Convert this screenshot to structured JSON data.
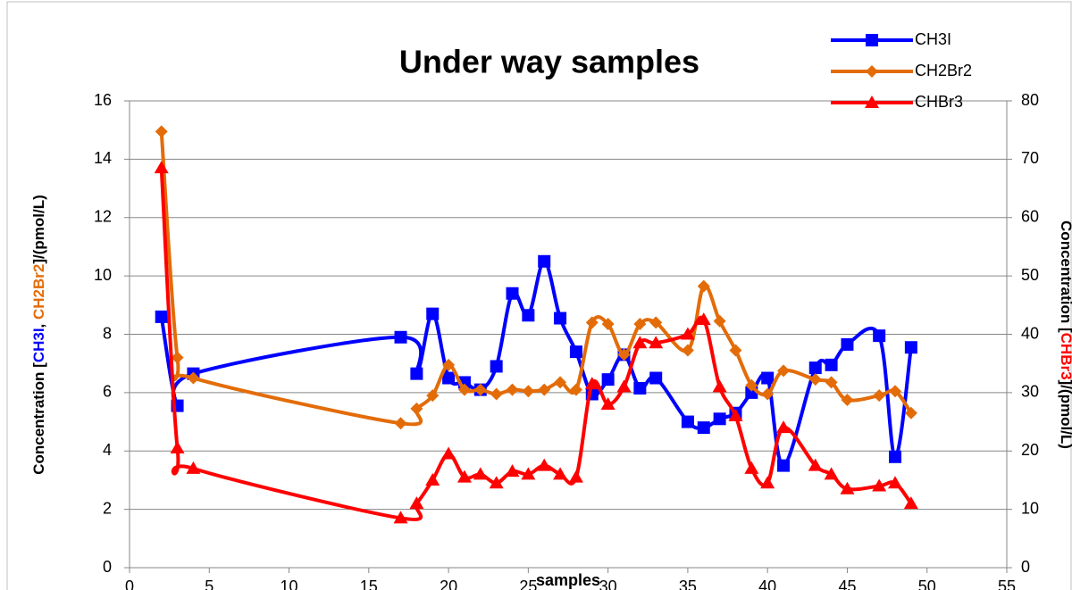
{
  "chart_data": {
    "type": "line",
    "title": "Under way samples",
    "x_label": "samples",
    "y_label_parts": [
      {
        "text": "Concentration [",
        "color": "#000000"
      },
      {
        "text": "CH3I",
        "color": "#0000ff"
      },
      {
        "text": ", ",
        "color": "#000000"
      },
      {
        "text": "CH2Br2",
        "color": "#e36c09"
      },
      {
        "text": "]/(pmol/L)",
        "color": "#000000"
      }
    ],
    "y2_label_parts": [
      {
        "text": "Concentration [",
        "color": "#000000"
      },
      {
        "text": "CHBr3",
        "color": "#ff0000"
      },
      {
        "text": "]/(pmol/L)",
        "color": "#000000"
      }
    ],
    "x": [
      2,
      3,
      4,
      17,
      18,
      19,
      20,
      21,
      22,
      23,
      24,
      25,
      26,
      27,
      28,
      29,
      30,
      31,
      32,
      33,
      35,
      36,
      37,
      38,
      39,
      40,
      41,
      43,
      44,
      45,
      47,
      48,
      49
    ],
    "series": [
      {
        "name": "CH3I",
        "color": "#0000ff",
        "marker": "square",
        "axis": "y",
        "values": [
          8.6,
          5.55,
          6.65,
          7.9,
          6.65,
          8.7,
          6.5,
          6.35,
          6.1,
          6.9,
          9.4,
          8.65,
          10.5,
          8.55,
          7.4,
          5.95,
          6.45,
          7.3,
          6.15,
          6.5,
          5.0,
          4.8,
          5.1,
          5.3,
          6.0,
          6.5,
          3.5,
          6.85,
          6.95,
          7.65,
          7.95,
          3.8,
          7.55
        ]
      },
      {
        "name": "CH2Br2",
        "color": "#e36c09",
        "marker": "diamond",
        "axis": "y",
        "values": [
          14.95,
          7.2,
          6.5,
          4.95,
          5.45,
          5.9,
          6.95,
          6.1,
          6.1,
          5.95,
          6.1,
          6.05,
          6.1,
          6.35,
          6.1,
          8.4,
          8.35,
          7.3,
          8.35,
          8.4,
          7.45,
          9.65,
          8.45,
          7.45,
          6.25,
          5.95,
          6.75,
          6.45,
          6.35,
          5.75,
          5.9,
          6.05,
          5.3
        ]
      },
      {
        "name": "CHBr3",
        "color": "#ff0000",
        "marker": "triangle",
        "axis": "y2",
        "values": [
          68.5,
          20.5,
          17,
          8.5,
          11,
          15,
          19.5,
          15.5,
          16,
          14.5,
          16.5,
          16,
          17.5,
          16,
          15.5,
          31.5,
          28,
          31,
          38.5,
          38.5,
          40,
          42.5,
          31,
          26,
          17,
          14.5,
          24,
          17.5,
          16,
          13.5,
          14,
          14.5,
          11
        ]
      }
    ],
    "xlim": [
      0,
      55
    ],
    "xticks": [
      0,
      5,
      10,
      15,
      20,
      25,
      30,
      35,
      40,
      45,
      50,
      55
    ],
    "ylim": [
      0,
      16
    ],
    "yticks": [
      0,
      2,
      4,
      6,
      8,
      10,
      12,
      14,
      16
    ],
    "y2lim": [
      0,
      80
    ],
    "y2ticks": [
      0,
      10,
      20,
      30,
      40,
      50,
      60,
      70,
      80
    ],
    "grid": true,
    "legend": "top-right"
  }
}
